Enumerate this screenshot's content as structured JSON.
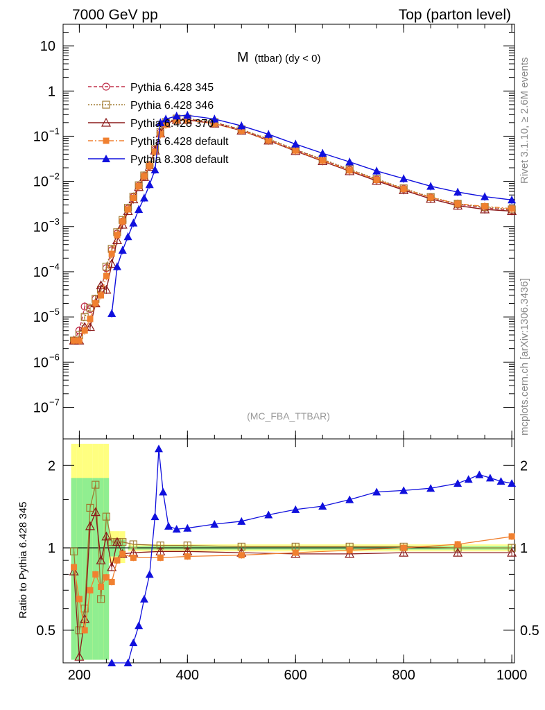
{
  "header": {
    "left": "7000 GeV pp",
    "right": "Top (parton level)"
  },
  "side_labels": {
    "rivet": "Rivet 3.1.10, ≥ 2.6M events",
    "mcplots": "mcplots.cern.ch [arXiv:1306.3436]"
  },
  "chart_data": [
    {
      "type": "line",
      "title_main": "M",
      "title_sub": "(ttbar) (dy < 0)",
      "watermark": "(MC_FBA_TTBAR)",
      "xlim": [
        170,
        1005
      ],
      "ylim": [
        2e-08,
        30
      ],
      "ylog": true,
      "x_ticks": [
        200,
        400,
        600,
        800,
        1000
      ],
      "y_ticks": [
        {
          "value": 1e-07,
          "label": "10",
          "exp": "−7"
        },
        {
          "value": 1e-06,
          "label": "10",
          "exp": "−6"
        },
        {
          "value": 1e-05,
          "label": "10",
          "exp": "−5"
        },
        {
          "value": 0.0001,
          "label": "10",
          "exp": "−4"
        },
        {
          "value": 0.001,
          "label": "10",
          "exp": "−3"
        },
        {
          "value": 0.01,
          "label": "10",
          "exp": "−2"
        },
        {
          "value": 0.1,
          "label": "10",
          "exp": "−1"
        },
        {
          "value": 1,
          "label": "1",
          "exp": ""
        },
        {
          "value": 10,
          "label": "10",
          "exp": ""
        }
      ],
      "legend_position": "top-left",
      "series": [
        {
          "name": "Pythia 6.428 345",
          "color": "#c0304a",
          "marker": "circle-open",
          "dash": "5,3",
          "points": [
            [
              190,
              3e-06
            ],
            [
              200,
              5e-06
            ],
            [
              210,
              1.7e-05
            ],
            [
              220,
              1.5e-05
            ],
            [
              230,
              2.5e-05
            ],
            [
              240,
              4e-05
            ],
            [
              250,
              0.00012
            ],
            [
              260,
              0.0003
            ],
            [
              270,
              0.0007
            ],
            [
              280,
              0.0013
            ],
            [
              290,
              0.0025
            ],
            [
              300,
              0.0045
            ],
            [
              310,
              0.008
            ],
            [
              320,
              0.013
            ],
            [
              330,
              0.022
            ],
            [
              340,
              0.05
            ],
            [
              350,
              0.12
            ],
            [
              360,
              0.2
            ],
            [
              380,
              0.24
            ],
            [
              400,
              0.24
            ],
            [
              450,
              0.2
            ],
            [
              500,
              0.14
            ],
            [
              550,
              0.085
            ],
            [
              600,
              0.05
            ],
            [
              650,
              0.03
            ],
            [
              700,
              0.018
            ],
            [
              750,
              0.011
            ],
            [
              800,
              0.0068
            ],
            [
              850,
              0.0044
            ],
            [
              900,
              0.0031
            ],
            [
              950,
              0.0026
            ],
            [
              1000,
              0.0023
            ]
          ]
        },
        {
          "name": "Pythia 6.428 346",
          "color": "#a07a30",
          "marker": "square-open",
          "dash": "2,2",
          "points": [
            [
              190,
              3e-06
            ],
            [
              200,
              4e-06
            ],
            [
              210,
              1e-05
            ],
            [
              220,
              1.6e-05
            ],
            [
              230,
              2.5e-05
            ],
            [
              240,
              4e-05
            ],
            [
              250,
              0.00013
            ],
            [
              260,
              0.00032
            ],
            [
              270,
              0.00075
            ],
            [
              280,
              0.0014
            ],
            [
              290,
              0.0026
            ],
            [
              300,
              0.0046
            ],
            [
              310,
              0.0082
            ],
            [
              320,
              0.0135
            ],
            [
              330,
              0.023
            ],
            [
              340,
              0.052
            ],
            [
              350,
              0.125
            ],
            [
              360,
              0.205
            ],
            [
              380,
              0.245
            ],
            [
              400,
              0.245
            ],
            [
              450,
              0.205
            ],
            [
              500,
              0.142
            ],
            [
              550,
              0.087
            ],
            [
              600,
              0.051
            ],
            [
              650,
              0.031
            ],
            [
              700,
              0.0185
            ],
            [
              750,
              0.0113
            ],
            [
              800,
              0.007
            ],
            [
              850,
              0.0045
            ],
            [
              900,
              0.0032
            ],
            [
              950,
              0.0027
            ],
            [
              1000,
              0.0024
            ]
          ]
        },
        {
          "name": "Pythia 6.428 370",
          "color": "#8b1a1a",
          "marker": "triangle-open",
          "dash": "",
          "points": [
            [
              190,
              3e-06
            ],
            [
              200,
              3e-06
            ],
            [
              210,
              6e-06
            ],
            [
              220,
              6e-06
            ],
            [
              230,
              2e-05
            ],
            [
              240,
              5e-05
            ],
            [
              250,
              4e-05
            ],
            [
              260,
              0.00015
            ],
            [
              270,
              0.0005
            ],
            [
              280,
              0.0011
            ],
            [
              290,
              0.0022
            ],
            [
              300,
              0.004
            ],
            [
              310,
              0.0075
            ],
            [
              320,
              0.0125
            ],
            [
              330,
              0.021
            ],
            [
              340,
              0.048
            ],
            [
              350,
              0.115
            ],
            [
              360,
              0.19
            ],
            [
              380,
              0.23
            ],
            [
              400,
              0.23
            ],
            [
              450,
              0.19
            ],
            [
              500,
              0.133
            ],
            [
              550,
              0.08
            ],
            [
              600,
              0.047
            ],
            [
              650,
              0.028
            ],
            [
              700,
              0.0168
            ],
            [
              750,
              0.0103
            ],
            [
              800,
              0.0064
            ],
            [
              850,
              0.0041
            ],
            [
              900,
              0.0029
            ],
            [
              950,
              0.0024
            ],
            [
              1000,
              0.0022
            ]
          ]
        },
        {
          "name": "Pythia 6.428 default",
          "color": "#f08030",
          "marker": "square-filled",
          "dash": "7,3,2,3",
          "points": [
            [
              190,
              3e-06
            ],
            [
              200,
              3e-06
            ],
            [
              210,
              5e-06
            ],
            [
              220,
              9e-06
            ],
            [
              230,
              2e-05
            ],
            [
              240,
              3e-05
            ],
            [
              250,
              8e-05
            ],
            [
              260,
              0.00025
            ],
            [
              270,
              0.00065
            ],
            [
              280,
              0.0013
            ],
            [
              290,
              0.0024
            ],
            [
              300,
              0.0043
            ],
            [
              310,
              0.0078
            ],
            [
              320,
              0.013
            ],
            [
              330,
              0.022
            ],
            [
              340,
              0.045
            ],
            [
              350,
              0.11
            ],
            [
              360,
              0.18
            ],
            [
              380,
              0.225
            ],
            [
              400,
              0.225
            ],
            [
              450,
              0.19
            ],
            [
              500,
              0.133
            ],
            [
              550,
              0.081
            ],
            [
              600,
              0.048
            ],
            [
              650,
              0.029
            ],
            [
              700,
              0.0175
            ],
            [
              750,
              0.0108
            ],
            [
              800,
              0.0068
            ],
            [
              850,
              0.0044
            ],
            [
              900,
              0.0032
            ],
            [
              950,
              0.0028
            ],
            [
              1000,
              0.0025
            ]
          ]
        },
        {
          "name": "Pythia 8.308 default",
          "color": "#1010dd",
          "marker": "triangle-filled",
          "dash": "",
          "points": [
            [
              260,
              1.2e-05
            ],
            [
              270,
              0.00013
            ],
            [
              280,
              0.0003
            ],
            [
              290,
              0.0006
            ],
            [
              300,
              0.0012
            ],
            [
              310,
              0.0024
            ],
            [
              320,
              0.0043
            ],
            [
              330,
              0.0085
            ],
            [
              340,
              0.018
            ],
            [
              350,
              0.2
            ],
            [
              360,
              0.24
            ],
            [
              380,
              0.28
            ],
            [
              400,
              0.29
            ],
            [
              450,
              0.24
            ],
            [
              500,
              0.17
            ],
            [
              550,
              0.11
            ],
            [
              600,
              0.067
            ],
            [
              650,
              0.042
            ],
            [
              700,
              0.027
            ],
            [
              750,
              0.017
            ],
            [
              800,
              0.0115
            ],
            [
              850,
              0.0078
            ],
            [
              900,
              0.0058
            ],
            [
              950,
              0.0046
            ],
            [
              1000,
              0.0039
            ]
          ]
        }
      ]
    },
    {
      "type": "line",
      "ylabel": "Ratio to Pythia 6.428 345",
      "xlim": [
        170,
        1005
      ],
      "ylim": [
        0.38,
        2.5
      ],
      "ylog": true,
      "x_ticks": [
        200,
        400,
        600,
        800,
        1000
      ],
      "y_ticks": [
        {
          "value": 0.5,
          "label": "0.5"
        },
        {
          "value": 1,
          "label": "1"
        },
        {
          "value": 2,
          "label": "2"
        }
      ],
      "band_colors": {
        "inner": "#90ee90",
        "outer": "#ffff80"
      },
      "series": [
        {
          "name": "Pythia 6.428 346",
          "color": "#a07a30",
          "marker": "square-open",
          "points": [
            [
              190,
              0.97
            ],
            [
              200,
              0.5
            ],
            [
              210,
              0.6
            ],
            [
              220,
              1.4
            ],
            [
              230,
              1.7
            ],
            [
              240,
              0.65
            ],
            [
              250,
              1.3
            ],
            [
              260,
              1.05
            ],
            [
              270,
              1.05
            ],
            [
              280,
              1.05
            ],
            [
              300,
              1.03
            ],
            [
              350,
              1.02
            ],
            [
              400,
              1.02
            ],
            [
              500,
              1.01
            ],
            [
              600,
              1.01
            ],
            [
              700,
              1.01
            ],
            [
              800,
              1.01
            ],
            [
              900,
              1.0
            ],
            [
              1000,
              1.0
            ]
          ]
        },
        {
          "name": "Pythia 6.428 370",
          "color": "#8b1a1a",
          "marker": "triangle-open",
          "points": [
            [
              190,
              0.82
            ],
            [
              200,
              0.4
            ],
            [
              210,
              0.55
            ],
            [
              220,
              1.2
            ],
            [
              230,
              1.35
            ],
            [
              240,
              0.9
            ],
            [
              250,
              1.1
            ],
            [
              260,
              0.85
            ],
            [
              270,
              1.05
            ],
            [
              280,
              0.95
            ],
            [
              300,
              0.96
            ],
            [
              350,
              0.97
            ],
            [
              400,
              0.97
            ],
            [
              500,
              0.96
            ],
            [
              600,
              0.95
            ],
            [
              700,
              0.95
            ],
            [
              800,
              0.96
            ],
            [
              900,
              0.96
            ],
            [
              1000,
              0.96
            ]
          ]
        },
        {
          "name": "Pythia 6.428 default",
          "color": "#f08030",
          "marker": "square-filled",
          "points": [
            [
              190,
              0.85
            ],
            [
              200,
              0.65
            ],
            [
              210,
              0.5
            ],
            [
              220,
              0.7
            ],
            [
              230,
              0.8
            ],
            [
              240,
              0.72
            ],
            [
              250,
              0.78
            ],
            [
              260,
              0.75
            ],
            [
              270,
              0.9
            ],
            [
              280,
              0.95
            ],
            [
              300,
              0.92
            ],
            [
              350,
              0.92
            ],
            [
              400,
              0.93
            ],
            [
              500,
              0.94
            ],
            [
              600,
              0.96
            ],
            [
              700,
              0.98
            ],
            [
              800,
              1.0
            ],
            [
              900,
              1.03
            ],
            [
              1000,
              1.1
            ]
          ]
        },
        {
          "name": "Pythia 8.308 default",
          "color": "#1010dd",
          "marker": "triangle-filled",
          "points": [
            [
              260,
              0.35
            ],
            [
              290,
              0.36
            ],
            [
              300,
              0.45
            ],
            [
              310,
              0.52
            ],
            [
              320,
              0.65
            ],
            [
              330,
              0.8
            ],
            [
              340,
              1.3
            ],
            [
              347,
              2.3
            ],
            [
              355,
              1.6
            ],
            [
              365,
              1.2
            ],
            [
              380,
              1.17
            ],
            [
              400,
              1.18
            ],
            [
              450,
              1.22
            ],
            [
              500,
              1.25
            ],
            [
              550,
              1.32
            ],
            [
              600,
              1.38
            ],
            [
              650,
              1.42
            ],
            [
              700,
              1.5
            ],
            [
              750,
              1.6
            ],
            [
              800,
              1.62
            ],
            [
              850,
              1.65
            ],
            [
              900,
              1.72
            ],
            [
              920,
              1.78
            ],
            [
              940,
              1.85
            ],
            [
              960,
              1.8
            ],
            [
              980,
              1.75
            ],
            [
              1000,
              1.72
            ]
          ]
        }
      ]
    }
  ]
}
